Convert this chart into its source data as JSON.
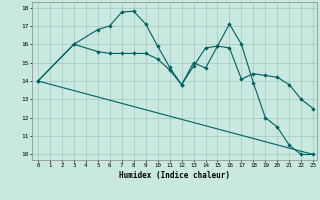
{
  "xlabel": "Humidex (Indice chaleur)",
  "xlim": [
    -0.5,
    23.3
  ],
  "ylim": [
    9.7,
    18.3
  ],
  "yticks": [
    10,
    11,
    12,
    13,
    14,
    15,
    16,
    17,
    18
  ],
  "xticks": [
    0,
    1,
    2,
    3,
    4,
    5,
    6,
    7,
    8,
    9,
    10,
    11,
    12,
    13,
    14,
    15,
    16,
    17,
    18,
    19,
    20,
    21,
    22,
    23
  ],
  "bg_color": "#c8e8e0",
  "grid_color": "#a0c8c0",
  "line_color": "#006060",
  "trend_line": {
    "x": [
      0,
      23
    ],
    "y": [
      14,
      10
    ]
  },
  "series_wavy": {
    "x": [
      0,
      3,
      5,
      6,
      7,
      8,
      9,
      10,
      11,
      12,
      13,
      14,
      15,
      16,
      17,
      18,
      19,
      20,
      21,
      22,
      23
    ],
    "y": [
      14,
      16,
      16.8,
      17.0,
      17.75,
      17.8,
      17.1,
      15.9,
      14.75,
      13.8,
      15.0,
      14.7,
      15.9,
      17.1,
      16.0,
      13.9,
      12.0,
      11.5,
      10.5,
      10.0,
      10.0
    ]
  },
  "series_smooth": {
    "x": [
      0,
      3,
      5,
      6,
      7,
      8,
      9,
      10,
      11,
      12,
      13,
      14,
      15,
      16,
      17,
      18,
      19,
      20,
      21,
      22,
      23
    ],
    "y": [
      14,
      16,
      15.6,
      15.5,
      15.5,
      15.5,
      15.5,
      15.2,
      14.6,
      13.8,
      14.8,
      15.8,
      15.9,
      15.8,
      14.1,
      14.4,
      14.3,
      14.2,
      13.8,
      13.0,
      12.5
    ]
  }
}
